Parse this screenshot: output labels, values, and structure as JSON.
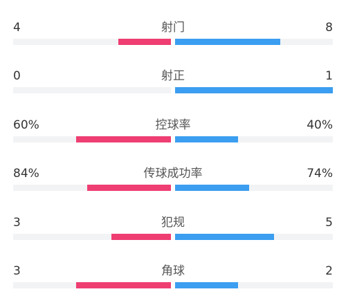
{
  "colors": {
    "home": "#ee3e72",
    "away": "#3b9ef0",
    "track": "#f2f3f5"
  },
  "stats": [
    {
      "label": "射门",
      "home": "4",
      "away": "8",
      "home_share": 0.333,
      "away_share": 0.667
    },
    {
      "label": "射正",
      "home": "0",
      "away": "1",
      "home_share": 0.0,
      "away_share": 1.0
    },
    {
      "label": "控球率",
      "home": "60%",
      "away": "40%",
      "home_share": 0.6,
      "away_share": 0.4
    },
    {
      "label": "传球成功率",
      "home": "84%",
      "away": "74%",
      "home_share": 0.532,
      "away_share": 0.468
    },
    {
      "label": "犯规",
      "home": "3",
      "away": "5",
      "home_share": 0.375,
      "away_share": 0.625
    },
    {
      "label": "角球",
      "home": "3",
      "away": "2",
      "home_share": 0.6,
      "away_share": 0.4
    }
  ]
}
